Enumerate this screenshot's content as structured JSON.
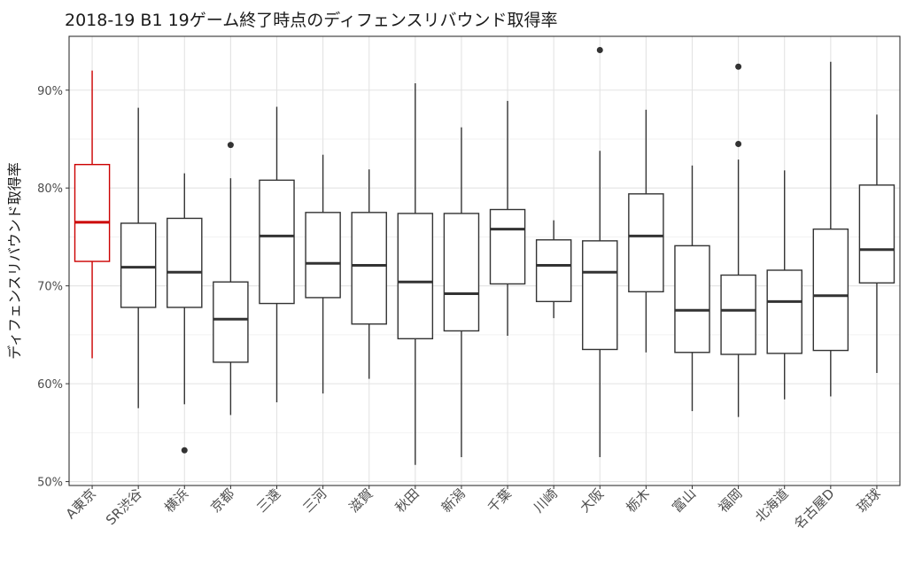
{
  "chart_data": {
    "type": "boxplot",
    "title": "2018-19 B1 19ゲーム終了時点のディフェンスリバウンド取得率",
    "xlabel": "",
    "ylabel": "ディフェンスリバウンド取得率",
    "ylim": [
      0.496,
      0.955
    ],
    "yticks": [
      0.5,
      0.6,
      0.7,
      0.8,
      0.9
    ],
    "ytick_labels": [
      "50%",
      "60%",
      "70%",
      "80%",
      "90%"
    ],
    "highlight_color": "#cc0000",
    "default_color": "#333333",
    "categories": [
      "A東京",
      "SR渋谷",
      "横浜",
      "京都",
      "三遠",
      "三河",
      "滋賀",
      "秋田",
      "新潟",
      "千葉",
      "川崎",
      "大阪",
      "栃木",
      "富山",
      "福岡",
      "北海道",
      "名古屋D",
      "琉球"
    ],
    "boxes": [
      {
        "min": 0.626,
        "q1": 0.725,
        "median": 0.765,
        "q3": 0.824,
        "max": 0.92,
        "outliers": [],
        "highlight": true
      },
      {
        "min": 0.575,
        "q1": 0.678,
        "median": 0.719,
        "q3": 0.764,
        "max": 0.882,
        "outliers": []
      },
      {
        "min": 0.579,
        "q1": 0.678,
        "median": 0.714,
        "q3": 0.769,
        "max": 0.815,
        "outliers": [
          0.532
        ]
      },
      {
        "min": 0.568,
        "q1": 0.622,
        "median": 0.666,
        "q3": 0.704,
        "max": 0.81,
        "outliers": [
          0.844
        ]
      },
      {
        "min": 0.581,
        "q1": 0.682,
        "median": 0.751,
        "q3": 0.808,
        "max": 0.883,
        "outliers": []
      },
      {
        "min": 0.59,
        "q1": 0.688,
        "median": 0.723,
        "q3": 0.775,
        "max": 0.834,
        "outliers": []
      },
      {
        "min": 0.605,
        "q1": 0.661,
        "median": 0.721,
        "q3": 0.775,
        "max": 0.819,
        "outliers": []
      },
      {
        "min": 0.517,
        "q1": 0.646,
        "median": 0.704,
        "q3": 0.774,
        "max": 0.907,
        "outliers": []
      },
      {
        "min": 0.525,
        "q1": 0.654,
        "median": 0.692,
        "q3": 0.774,
        "max": 0.862,
        "outliers": []
      },
      {
        "min": 0.649,
        "q1": 0.702,
        "median": 0.758,
        "q3": 0.778,
        "max": 0.889,
        "outliers": []
      },
      {
        "min": 0.667,
        "q1": 0.684,
        "median": 0.721,
        "q3": 0.747,
        "max": 0.767,
        "outliers": []
      },
      {
        "min": 0.525,
        "q1": 0.635,
        "median": 0.714,
        "q3": 0.746,
        "max": 0.838,
        "outliers": [
          0.941
        ]
      },
      {
        "min": 0.632,
        "q1": 0.694,
        "median": 0.751,
        "q3": 0.794,
        "max": 0.88,
        "outliers": []
      },
      {
        "min": 0.572,
        "q1": 0.632,
        "median": 0.675,
        "q3": 0.741,
        "max": 0.823,
        "outliers": []
      },
      {
        "min": 0.566,
        "q1": 0.63,
        "median": 0.675,
        "q3": 0.711,
        "max": 0.829,
        "outliers": [
          0.845,
          0.924
        ]
      },
      {
        "min": 0.584,
        "q1": 0.631,
        "median": 0.684,
        "q3": 0.716,
        "max": 0.818,
        "outliers": []
      },
      {
        "min": 0.587,
        "q1": 0.634,
        "median": 0.69,
        "q3": 0.758,
        "max": 0.929,
        "outliers": []
      },
      {
        "min": 0.611,
        "q1": 0.703,
        "median": 0.737,
        "q3": 0.803,
        "max": 0.875,
        "outliers": []
      }
    ]
  }
}
